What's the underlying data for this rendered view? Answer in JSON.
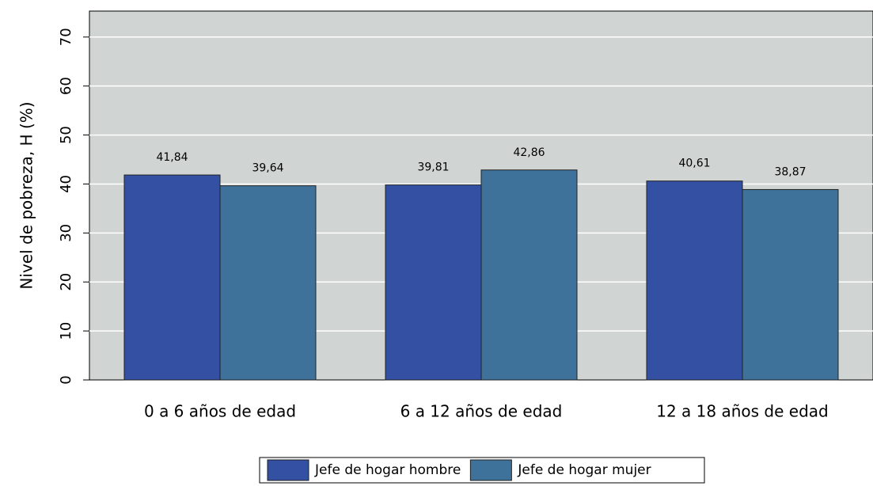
{
  "chart_data": {
    "type": "bar",
    "ylabel": "Nivel de pobreza, H (%)",
    "categories": [
      "0 a 6 años de edad",
      "6 a 12 años de edad",
      "12 a 18 años de edad"
    ],
    "series": [
      {
        "name": "Jefe de hogar hombre",
        "color": "#3350a3",
        "values": [
          41.84,
          39.81,
          40.61
        ],
        "value_labels": [
          "41,84",
          "39,81",
          "40,61"
        ]
      },
      {
        "name": "Jefe de hogar mujer",
        "color": "#3f729b",
        "values": [
          39.64,
          42.86,
          38.87
        ],
        "value_labels": [
          "39,64",
          "42,86",
          "38,87"
        ]
      }
    ],
    "ylim": [
      0,
      75.3
    ],
    "yticks": [
      0,
      10,
      20,
      30,
      40,
      50,
      60,
      70
    ],
    "grid": true,
    "legend": "bottom"
  }
}
